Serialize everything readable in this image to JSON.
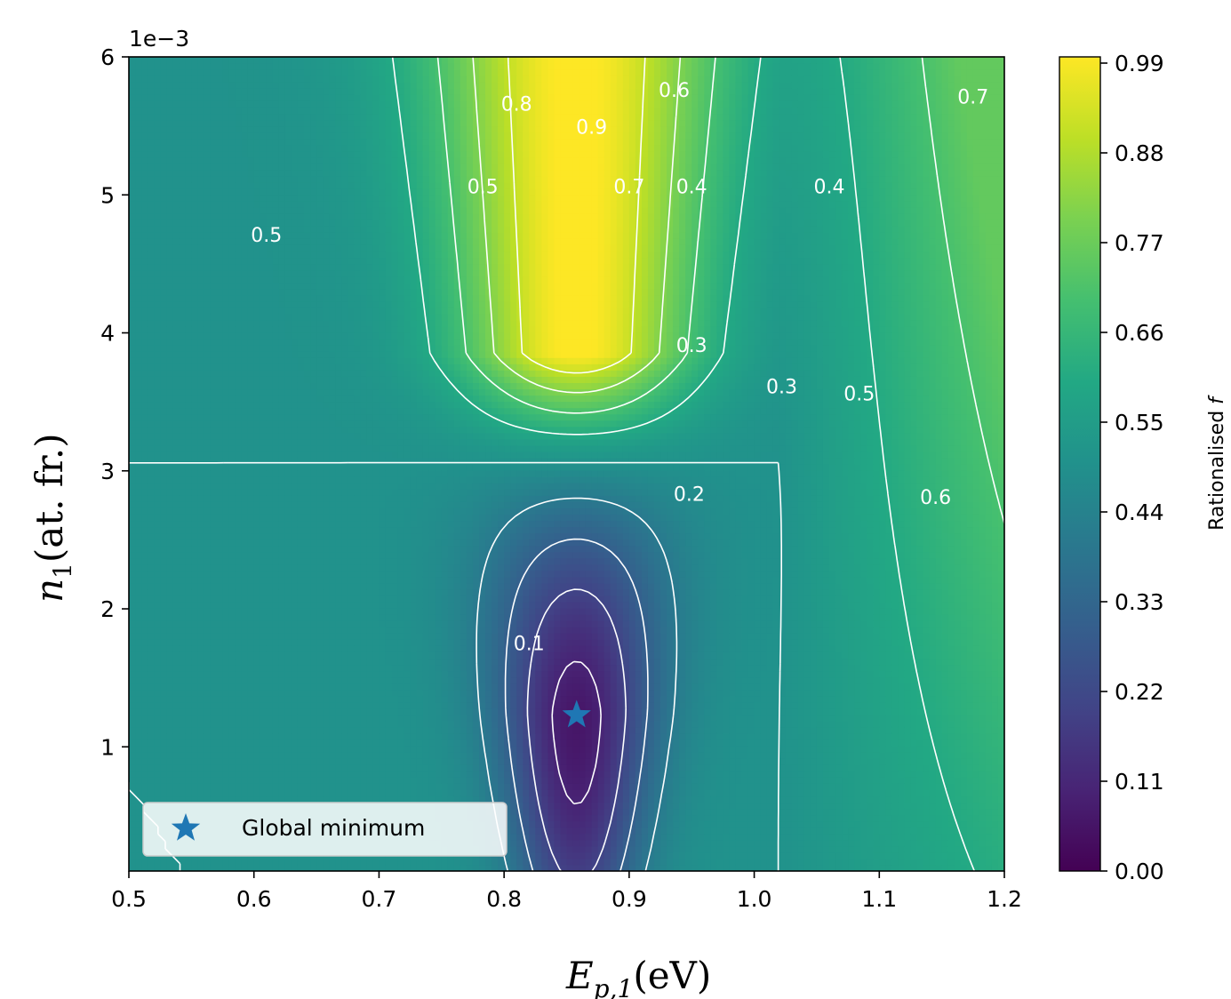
{
  "chart_data": {
    "type": "heatmap",
    "subtype": "filled-contour with line contours",
    "colormap": "viridis",
    "xlabel_main": "E",
    "xlabel_sub": "p,1",
    "xlabel_unit": "(eV)",
    "ylabel_main": "n",
    "ylabel_sub": "1",
    "ylabel_unit": "(at. fr.)",
    "y_offset_text": "1e−3",
    "xlim": [
      0.5,
      1.2
    ],
    "ylim": [
      0.1,
      6.0
    ],
    "x_ticks": [
      0.5,
      0.6,
      0.7,
      0.8,
      0.9,
      1.0,
      1.1,
      1.2
    ],
    "x_tick_labels": [
      "0.5",
      "0.6",
      "0.7",
      "0.8",
      "0.9",
      "1.0",
      "1.1",
      "1.2"
    ],
    "y_ticks": [
      1,
      2,
      3,
      4,
      5,
      6
    ],
    "y_tick_labels": [
      "1",
      "2",
      "3",
      "4",
      "5",
      "6"
    ],
    "colorbar": {
      "label_pre": "Rationalised ",
      "label_var": "f",
      "range": [
        0.0,
        0.99
      ],
      "ticks": [
        0.0,
        0.11,
        0.22,
        0.33,
        0.44,
        0.55,
        0.66,
        0.77,
        0.88,
        0.99
      ],
      "tick_labels": [
        "0.00",
        "0.11",
        "0.22",
        "0.33",
        "0.44",
        "0.55",
        "0.66",
        "0.77",
        "0.88",
        "0.99"
      ]
    },
    "contour_levels": [
      0.1,
      0.2,
      0.3,
      0.4,
      0.5,
      0.6,
      0.7,
      0.8,
      0.9
    ],
    "contour_labels": [
      {
        "text": "0.1",
        "x": 0.82,
        "y": 1.74
      },
      {
        "text": "0.2",
        "x": 0.948,
        "y": 2.82
      },
      {
        "text": "0.3",
        "x": 0.95,
        "y": 3.9
      },
      {
        "text": "0.3",
        "x": 1.022,
        "y": 3.6
      },
      {
        "text": "0.4",
        "x": 0.95,
        "y": 5.05
      },
      {
        "text": "0.4",
        "x": 1.06,
        "y": 5.05
      },
      {
        "text": "0.5",
        "x": 0.61,
        "y": 4.7
      },
      {
        "text": "0.5",
        "x": 0.783,
        "y": 5.05
      },
      {
        "text": "0.5",
        "x": 1.084,
        "y": 3.55
      },
      {
        "text": "0.6",
        "x": 0.936,
        "y": 5.75
      },
      {
        "text": "0.6",
        "x": 1.145,
        "y": 2.8
      },
      {
        "text": "0.7",
        "x": 0.9,
        "y": 5.05
      },
      {
        "text": "0.7",
        "x": 1.175,
        "y": 5.7
      },
      {
        "text": "0.8",
        "x": 0.81,
        "y": 5.65
      },
      {
        "text": "0.9",
        "x": 0.87,
        "y": 5.48
      }
    ],
    "global_minimum": {
      "x": 0.858,
      "y": 1.23
    },
    "legend": {
      "placement": "lower-left",
      "entries": [
        "Global minimum"
      ]
    }
  }
}
